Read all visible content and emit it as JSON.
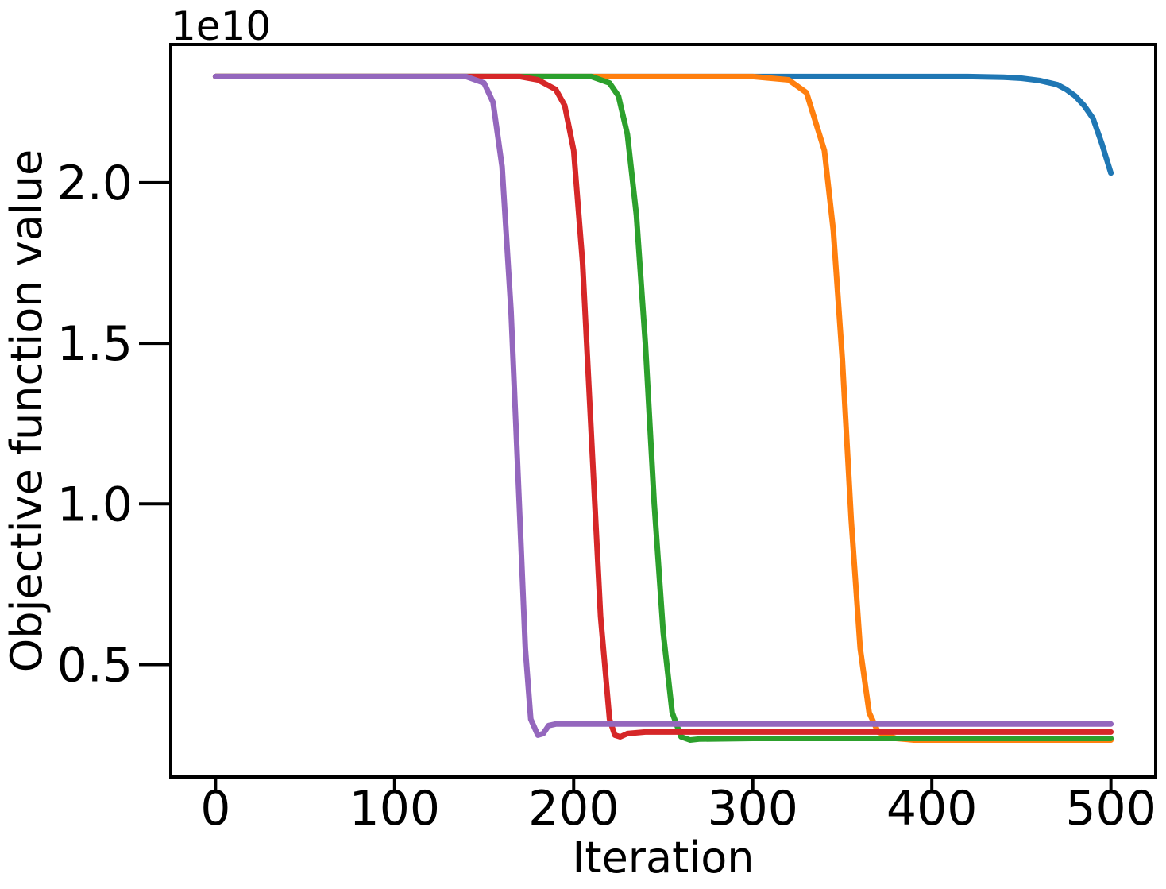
{
  "chart_data": {
    "type": "line",
    "title": "",
    "xlabel": "Iteration",
    "ylabel": "Objective function value",
    "y_offset_text": "1e10",
    "xlim": [
      -25,
      525
    ],
    "ylim": [
      0.15,
      2.43
    ],
    "x_ticks": [
      0,
      100,
      200,
      300,
      400,
      500
    ],
    "x_tick_labels": [
      "0",
      "100",
      "200",
      "300",
      "400",
      "500"
    ],
    "y_ticks": [
      0.5,
      1.0,
      1.5,
      2.0
    ],
    "y_tick_labels": [
      "0.5",
      "1.0",
      "1.5",
      "2.0"
    ],
    "grid": false,
    "legend": "none",
    "series": [
      {
        "color": "#1f77b4",
        "x": [
          0,
          100,
          200,
          300,
          350,
          400,
          420,
          440,
          450,
          460,
          470,
          475,
          480,
          485,
          490,
          495,
          500
        ],
        "y": [
          2.33,
          2.33,
          2.33,
          2.33,
          2.33,
          2.33,
          2.33,
          2.328,
          2.325,
          2.318,
          2.305,
          2.29,
          2.27,
          2.24,
          2.2,
          2.12,
          2.03
        ]
      },
      {
        "color": "#ff7f0e",
        "x": [
          0,
          100,
          200,
          300,
          320,
          330,
          340,
          345,
          350,
          355,
          360,
          365,
          370,
          375,
          380,
          390,
          400,
          450,
          500
        ],
        "y": [
          2.33,
          2.33,
          2.33,
          2.33,
          2.32,
          2.28,
          2.1,
          1.85,
          1.45,
          0.95,
          0.55,
          0.35,
          0.29,
          0.28,
          0.27,
          0.265,
          0.265,
          0.265,
          0.265
        ]
      },
      {
        "color": "#2ca02c",
        "x": [
          0,
          100,
          200,
          210,
          220,
          225,
          230,
          235,
          240,
          245,
          250,
          255,
          260,
          265,
          270,
          300,
          400,
          500
        ],
        "y": [
          2.33,
          2.33,
          2.33,
          2.33,
          2.31,
          2.27,
          2.15,
          1.9,
          1.5,
          1.0,
          0.6,
          0.35,
          0.275,
          0.265,
          0.268,
          0.27,
          0.27,
          0.27
        ]
      },
      {
        "color": "#d62728",
        "x": [
          0,
          100,
          170,
          180,
          190,
          195,
          200,
          205,
          210,
          215,
          220,
          223,
          226,
          230,
          240,
          300,
          400,
          500
        ],
        "y": [
          2.33,
          2.33,
          2.33,
          2.32,
          2.29,
          2.24,
          2.1,
          1.75,
          1.2,
          0.65,
          0.33,
          0.28,
          0.275,
          0.285,
          0.29,
          0.29,
          0.29,
          0.29
        ]
      },
      {
        "color": "#9467bd",
        "x": [
          0,
          100,
          140,
          150,
          155,
          160,
          165,
          170,
          173,
          176,
          180,
          183,
          186,
          190,
          200,
          300,
          400,
          500
        ],
        "y": [
          2.33,
          2.33,
          2.33,
          2.31,
          2.25,
          2.05,
          1.6,
          0.95,
          0.55,
          0.33,
          0.28,
          0.285,
          0.31,
          0.315,
          0.315,
          0.315,
          0.315,
          0.315
        ]
      }
    ]
  }
}
